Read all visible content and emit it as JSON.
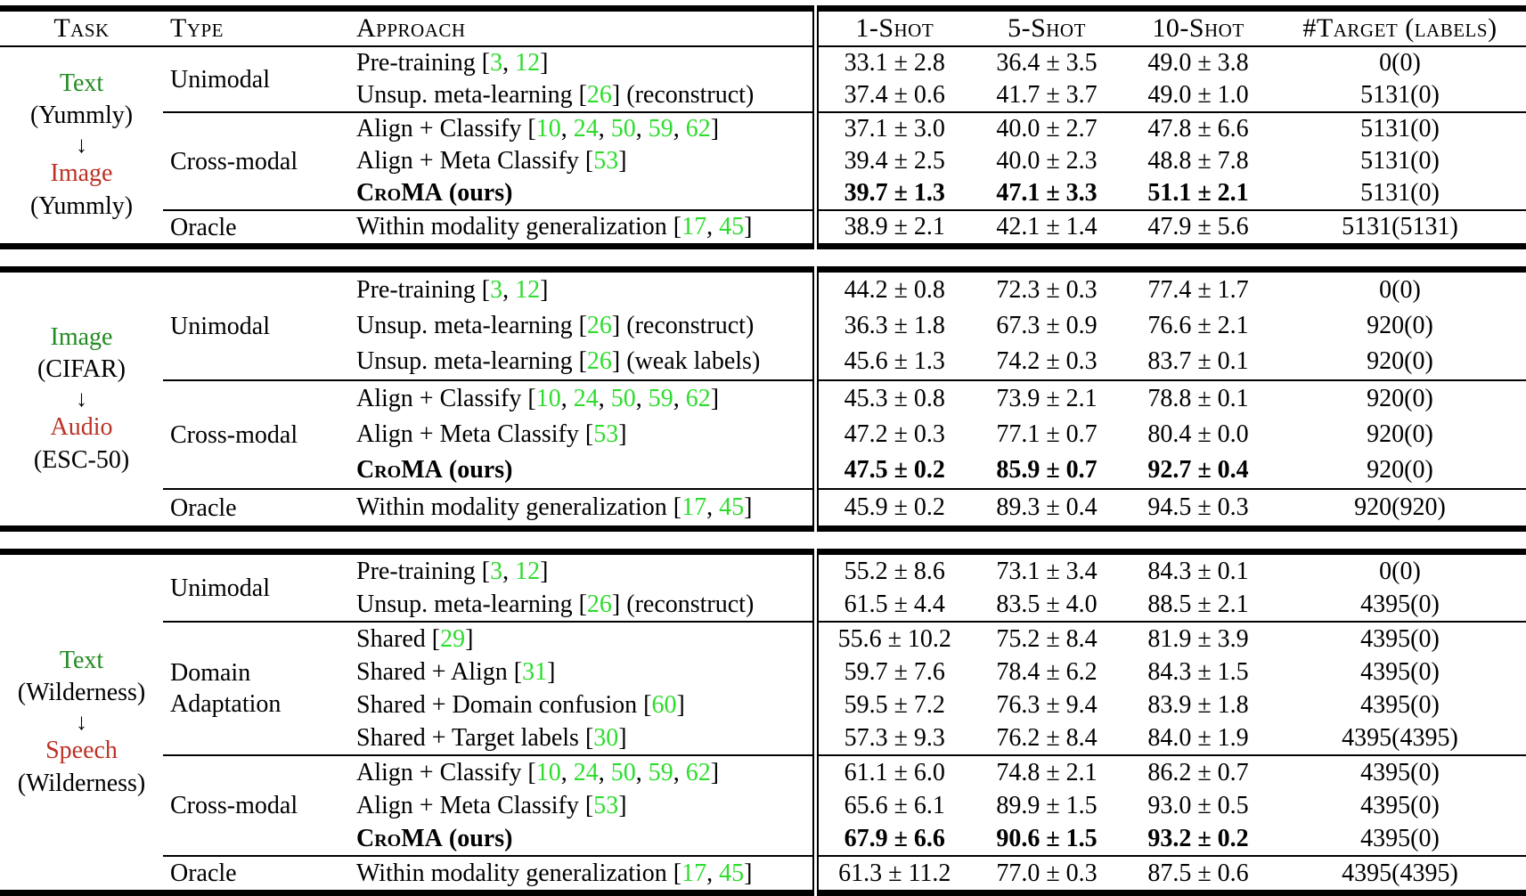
{
  "colors": {
    "source_modality_green": "#228B22",
    "target_modality_red": "#BB3226",
    "citation_green": "#2EDC2E",
    "rule_black": "#000000"
  },
  "header": {
    "task": "Task",
    "type": "Type",
    "approach": "Approach",
    "value_cols": [
      "1-Shot",
      "5-Shot",
      "10-Shot",
      "#Target (labels)"
    ]
  },
  "tables": [
    {
      "id": "yummly-text-to-image",
      "has_header": true,
      "task_lines": [
        {
          "text": "Text",
          "color": "green",
          "name": "source-modality"
        },
        {
          "text": "(Yummly)",
          "name": "source-dataset"
        },
        {
          "text": "↓",
          "arrow": true,
          "name": "down-arrow-icon"
        },
        {
          "text": "Image",
          "color": "red",
          "name": "target-modality"
        },
        {
          "text": "(Yummly)",
          "name": "target-dataset"
        }
      ],
      "groups": [
        {
          "type": "Unimodal",
          "rows": [
            {
              "approach": "Pre-training [3, 12]",
              "values": [
                "33.1 ± 2.8",
                "36.4 ± 3.5",
                "49.0 ± 3.8",
                "0(0)"
              ]
            },
            {
              "approach": "Unsup. meta-learning [26] (reconstruct)",
              "values": [
                "37.4 ± 0.6",
                "41.7 ± 3.7",
                "49.0 ± 1.0",
                "5131(0)"
              ]
            }
          ]
        },
        {
          "type": "Cross-modal",
          "rows": [
            {
              "approach": "Align + Classify [10, 24, 50, 59, 62]",
              "values": [
                "37.1 ± 3.0",
                "40.0 ± 2.7",
                "47.8 ± 6.6",
                "5131(0)"
              ]
            },
            {
              "approach": "Align + Meta Classify [53]",
              "values": [
                "39.4 ± 2.5",
                "40.0 ± 2.3",
                "48.8 ± 7.8",
                "5131(0)"
              ]
            },
            {
              "approach_sc": "CroMA",
              "approach_rest": " (ours)",
              "bold": true,
              "values": [
                "39.7 ± 1.3",
                "47.1 ± 3.3",
                "51.1 ± 2.1",
                "5131(0)"
              ]
            }
          ]
        },
        {
          "type": "Oracle",
          "rows": [
            {
              "approach": "Within modality generalization [17, 45]",
              "values": [
                "38.9 ± 2.1",
                "42.1 ± 1.4",
                "47.9 ± 5.6",
                "5131(5131)"
              ]
            }
          ]
        }
      ]
    },
    {
      "id": "cifar-image-to-audio",
      "has_header": false,
      "task_lines": [
        {
          "text": "Image",
          "color": "green",
          "name": "source-modality"
        },
        {
          "text": "(CIFAR)",
          "name": "source-dataset"
        },
        {
          "text": "↓",
          "arrow": true,
          "name": "down-arrow-icon"
        },
        {
          "text": "Audio",
          "color": "red",
          "name": "target-modality"
        },
        {
          "text": "(ESC-50)",
          "name": "target-dataset"
        }
      ],
      "groups": [
        {
          "type": "Unimodal",
          "rows": [
            {
              "approach": "Pre-training [3, 12]",
              "values": [
                "44.2 ± 0.8",
                "72.3 ± 0.3",
                "77.4 ± 1.7",
                "0(0)"
              ]
            },
            {
              "approach": "Unsup. meta-learning [26] (reconstruct)",
              "values": [
                "36.3 ± 1.8",
                "67.3 ± 0.9",
                "76.6 ± 2.1",
                "920(0)"
              ]
            },
            {
              "approach": "Unsup. meta-learning [26] (weak labels)",
              "values": [
                "45.6 ± 1.3",
                "74.2 ± 0.3",
                "83.7 ± 0.1",
                "920(0)"
              ]
            }
          ]
        },
        {
          "type": "Cross-modal",
          "rows": [
            {
              "approach": "Align + Classify [10, 24, 50, 59, 62]",
              "values": [
                "45.3 ± 0.8",
                "73.9 ± 2.1",
                "78.8 ± 0.1",
                "920(0)"
              ]
            },
            {
              "approach": "Align + Meta Classify [53]",
              "values": [
                "47.2 ± 0.3",
                "77.1 ± 0.7",
                "80.4 ± 0.0",
                "920(0)"
              ]
            },
            {
              "approach_sc": "CroMA",
              "approach_rest": " (ours)",
              "bold": true,
              "values": [
                "47.5 ± 0.2",
                "85.9 ± 0.7",
                "92.7 ± 0.4",
                "920(0)"
              ]
            }
          ]
        },
        {
          "type": "Oracle",
          "rows": [
            {
              "approach": "Within modality generalization [17, 45]",
              "values": [
                "45.9 ± 0.2",
                "89.3 ± 0.4",
                "94.5 ± 0.3",
                "920(920)"
              ]
            }
          ]
        }
      ]
    },
    {
      "id": "wilderness-text-to-speech",
      "has_header": false,
      "task_lines": [
        {
          "text": "Text",
          "color": "green",
          "name": "source-modality"
        },
        {
          "text": "(Wilderness)",
          "name": "source-dataset"
        },
        {
          "text": "↓",
          "arrow": true,
          "name": "down-arrow-icon"
        },
        {
          "text": "Speech",
          "color": "red",
          "name": "target-modality"
        },
        {
          "text": "(Wilderness)",
          "name": "target-dataset"
        }
      ],
      "groups": [
        {
          "type": "Unimodal",
          "rows": [
            {
              "approach": "Pre-training [3, 12]",
              "values": [
                "55.2 ± 8.6",
                "73.1 ± 3.4",
                "84.3 ± 0.1",
                "0(0)"
              ]
            },
            {
              "approach": "Unsup. meta-learning [26] (reconstruct)",
              "values": [
                "61.5 ± 4.4",
                "83.5 ± 4.0",
                "88.5 ± 2.1",
                "4395(0)"
              ]
            }
          ]
        },
        {
          "type": "Domain Adaptation",
          "rows": [
            {
              "approach": "Shared [29]",
              "values": [
                "55.6 ± 10.2",
                "75.2 ± 8.4",
                "81.9 ± 3.9",
                "4395(0)"
              ]
            },
            {
              "approach": "Shared + Align [31]",
              "values": [
                "59.7 ± 7.6",
                "78.4 ± 6.2",
                "84.3 ± 1.5",
                "4395(0)"
              ]
            },
            {
              "approach": "Shared + Domain confusion [60]",
              "values": [
                "59.5 ± 7.2",
                "76.3 ± 9.4",
                "83.9 ± 1.8",
                "4395(0)"
              ]
            },
            {
              "approach": "Shared + Target labels [30]",
              "values": [
                "57.3 ± 9.3",
                "76.2 ± 8.4",
                "84.0 ± 1.9",
                "4395(4395)"
              ]
            }
          ]
        },
        {
          "type": "Cross-modal",
          "rows": [
            {
              "approach": "Align + Classify [10, 24, 50, 59, 62]",
              "values": [
                "61.1 ± 6.0",
                "74.8 ± 2.1",
                "86.2 ± 0.7",
                "4395(0)"
              ]
            },
            {
              "approach": "Align + Meta Classify [53]",
              "values": [
                "65.6 ± 6.1",
                "89.9 ± 1.5",
                "93.0 ± 0.5",
                "4395(0)"
              ]
            },
            {
              "approach_sc": "CroMA",
              "approach_rest": " (ours)",
              "bold": true,
              "values": [
                "67.9 ± 6.6",
                "90.6 ± 1.5",
                "93.2 ± 0.2",
                "4395(0)"
              ]
            }
          ]
        },
        {
          "type": "Oracle",
          "rows": [
            {
              "approach": "Within modality generalization [17, 45]",
              "values": [
                "61.3 ± 11.2",
                "77.0 ± 0.3",
                "87.5 ± 0.6",
                "4395(4395)"
              ]
            }
          ]
        }
      ]
    }
  ]
}
